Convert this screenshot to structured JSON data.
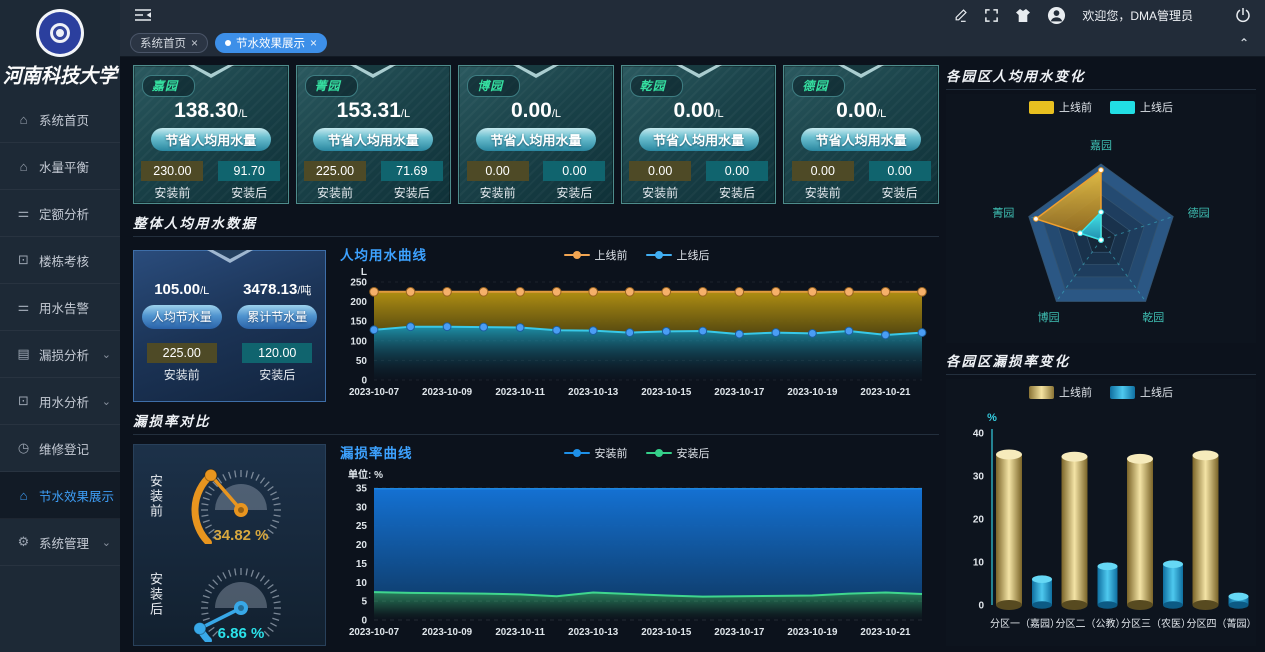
{
  "brand": {
    "university": "河南科技大学"
  },
  "topbar": {
    "welcome": "欢迎您，DMA管理员"
  },
  "tabs": [
    {
      "label": "系统首页",
      "active": false
    },
    {
      "label": "节水效果展示",
      "active": true
    }
  ],
  "sidebar": [
    {
      "label": "系统首页",
      "icon": "home",
      "active": false,
      "expandable": false
    },
    {
      "label": "水量平衡",
      "icon": "home",
      "active": false,
      "expandable": false
    },
    {
      "label": "定额分析",
      "icon": "sliders",
      "active": false,
      "expandable": false
    },
    {
      "label": "楼栋考核",
      "icon": "monitor",
      "active": false,
      "expandable": false
    },
    {
      "label": "用水告警",
      "icon": "sliders",
      "active": false,
      "expandable": false
    },
    {
      "label": "漏损分析",
      "icon": "chart",
      "active": false,
      "expandable": true
    },
    {
      "label": "用水分析",
      "icon": "monitor",
      "active": false,
      "expandable": true
    },
    {
      "label": "维修登记",
      "icon": "clock",
      "active": false,
      "expandable": false
    },
    {
      "label": "节水效果展示",
      "icon": "home",
      "active": true,
      "expandable": false
    },
    {
      "label": "系统管理",
      "icon": "gear",
      "active": false,
      "expandable": true
    }
  ],
  "labels": {
    "before": "安装前",
    "after": "安装后"
  },
  "sections": {
    "overall": "整体人均用水数据",
    "leak": "漏损率对比"
  },
  "park_cards": [
    {
      "name": "嘉园",
      "value": "138.30",
      "unit": "/L",
      "button": "节省人均用水量",
      "before": "230.00",
      "after": "91.70"
    },
    {
      "name": "菁园",
      "value": "153.31",
      "unit": "/L",
      "button": "节省人均用水量",
      "before": "225.00",
      "after": "71.69"
    },
    {
      "name": "博园",
      "value": "0.00",
      "unit": "/L",
      "button": "节省人均用水量",
      "before": "0.00",
      "after": "0.00"
    },
    {
      "name": "乾园",
      "value": "0.00",
      "unit": "/L",
      "button": "节省人均用水量",
      "before": "0.00",
      "after": "0.00"
    },
    {
      "name": "德园",
      "value": "0.00",
      "unit": "/L",
      "button": "节省人均用水量",
      "before": "0.00",
      "after": "0.00"
    }
  ],
  "overall_card": {
    "left_value": "105.00",
    "left_unit": "/L",
    "left_button": "人均节水量",
    "right_value": "3478.13",
    "right_unit": "/吨",
    "right_button": "累计节水量",
    "before": "225.00",
    "after": "120.00"
  },
  "chart_data": {
    "per_capita_line": {
      "type": "line",
      "title": "人均用水曲线",
      "unit": "L",
      "legend": [
        {
          "name": "上线前",
          "color": "#f2a552"
        },
        {
          "name": "上线后",
          "color": "#41aef2"
        }
      ],
      "x": [
        "2023-10-07",
        "2023-10-08",
        "2023-10-09",
        "2023-10-10",
        "2023-10-11",
        "2023-10-12",
        "2023-10-13",
        "2023-10-14",
        "2023-10-15",
        "2023-10-16",
        "2023-10-17",
        "2023-10-18",
        "2023-10-19",
        "2023-10-20",
        "2023-10-21",
        "2023-10-22"
      ],
      "x_label_every": 2,
      "ylim": [
        0,
        250
      ],
      "yticks": [
        0,
        50,
        100,
        150,
        200,
        250
      ],
      "series": [
        {
          "name": "上线前",
          "color": "#e09a3e",
          "values": [
            225,
            225,
            225,
            225,
            225,
            225,
            225,
            225,
            225,
            225,
            225,
            225,
            225,
            225,
            225,
            225
          ]
        },
        {
          "name": "上线后",
          "color": "#38c8e8",
          "values": [
            128,
            136,
            136,
            135,
            134,
            127,
            126,
            121,
            124,
            125,
            117,
            121,
            119,
            125,
            115,
            121
          ]
        }
      ]
    },
    "leak_line": {
      "type": "line",
      "title": "漏损率曲线",
      "unit": "单位: %",
      "legend": [
        {
          "name": "安装前",
          "color": "#1e90e8"
        },
        {
          "name": "安装后",
          "color": "#35d08a"
        }
      ],
      "x": [
        "2023-10-07",
        "2023-10-08",
        "2023-10-09",
        "2023-10-10",
        "2023-10-11",
        "2023-10-12",
        "2023-10-13",
        "2023-10-14",
        "2023-10-15",
        "2023-10-16",
        "2023-10-17",
        "2023-10-18",
        "2023-10-19",
        "2023-10-20",
        "2023-10-21",
        "2023-10-22"
      ],
      "x_label_every": 2,
      "ylim": [
        0,
        35
      ],
      "yticks": [
        0,
        5,
        10,
        15,
        20,
        25,
        30,
        35
      ],
      "series": [
        {
          "name": "安装前",
          "color": "#1e86e0",
          "values": [
            34.8,
            34.8,
            34.8,
            34.8,
            34.8,
            34.8,
            34.8,
            34.8,
            34.8,
            34.8,
            34.8,
            34.8,
            34.8,
            34.8,
            34.8,
            34.8
          ]
        },
        {
          "name": "安装后",
          "color": "#3fd68e",
          "values": [
            7.4,
            7.2,
            7.1,
            7.0,
            6.8,
            6.3,
            7.3,
            6.9,
            6.5,
            6.2,
            6.3,
            6.4,
            6.5,
            7.0,
            7.3,
            6.9
          ]
        }
      ]
    },
    "radar": {
      "type": "radar",
      "title": "各园区人均用水变化",
      "max": 250,
      "legend": [
        {
          "name": "上线前",
          "color": "#e8c020"
        },
        {
          "name": "上线后",
          "color": "#22dee4"
        }
      ],
      "axes": [
        "嘉园",
        "德园",
        "乾园",
        "博园",
        "菁园"
      ],
      "series": [
        {
          "name": "上线前",
          "values": [
            230,
            0,
            0,
            0,
            225
          ]
        },
        {
          "name": "上线后",
          "values": [
            91.7,
            0,
            0,
            0,
            71.69
          ]
        }
      ]
    },
    "leak_bars": {
      "type": "bar",
      "title": "各园区漏损率变化",
      "unit": "%",
      "legend": [
        {
          "name": "上线前",
          "colors": [
            "#8a7435",
            "#f4e3a1"
          ]
        },
        {
          "name": "上线后",
          "colors": [
            "#0f6fa0",
            "#4ec9ef"
          ]
        }
      ],
      "categories": [
        "分区一（嘉园）",
        "分区二（公教）",
        "分区三（农医）",
        "分区四（菁园）"
      ],
      "ylim": [
        0,
        40
      ],
      "yticks": [
        0,
        10,
        20,
        30,
        40
      ],
      "series": [
        {
          "name": "上线前",
          "values": [
            35,
            34.5,
            34,
            34.8
          ]
        },
        {
          "name": "上线后",
          "values": [
            6,
            9,
            9.5,
            2
          ]
        }
      ]
    },
    "gauges": [
      {
        "label": "安装前",
        "value": 34.82,
        "display": "34.82 %",
        "color": "#e8951f",
        "text_color": "#d8a83e"
      },
      {
        "label": "安装后",
        "value": 6.86,
        "display": "6.86 %",
        "color": "#38a8e8",
        "text_color": "#2be2ea"
      }
    ]
  }
}
